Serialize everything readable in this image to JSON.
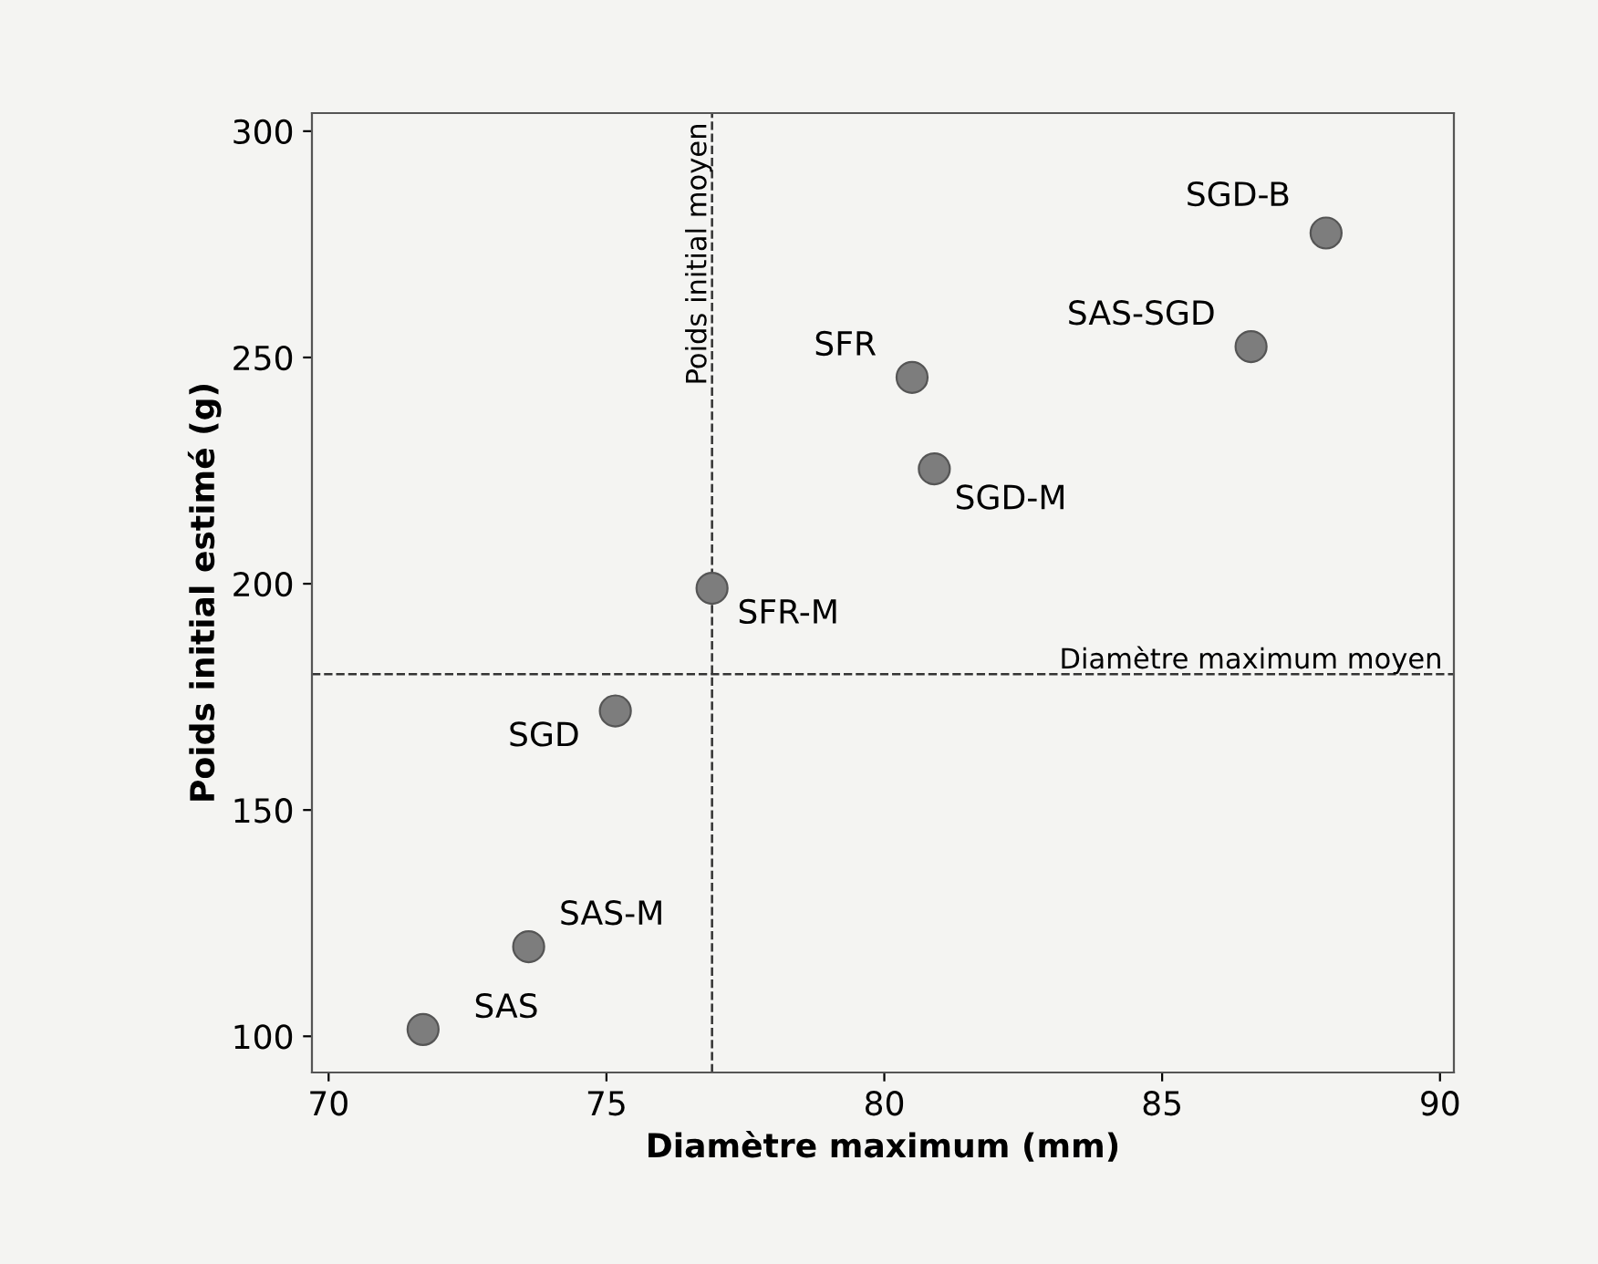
{
  "chart_data": {
    "type": "scatter",
    "xlabel": "Diamètre maximum (mm)",
    "ylabel": "Poids initial estimé (g)",
    "series": [
      {
        "color": "#7d7d7d",
        "x": [
          71.7,
          73.6,
          75.16,
          76.9,
          80.5,
          80.9,
          86.6,
          87.95
        ],
        "values": [
          101.5,
          119.8,
          171.9,
          199,
          245.6,
          225.4,
          252.4,
          277.5
        ],
        "value_labels": [
          "SAS",
          "SAS-M",
          "SGD",
          "SFR-M",
          "SFR",
          "SGD-M",
          "SAS-SGD",
          "SGD-B"
        ]
      }
    ],
    "marker": "circle",
    "xlim": [
      69.7,
      90.25
    ],
    "xticks": [
      70,
      75,
      80,
      85,
      90
    ],
    "ylim": [
      92,
      304
    ],
    "yticks": [
      100,
      150,
      200,
      250,
      300
    ],
    "ref_lines": [
      {
        "axis": "x",
        "value": 76.9,
        "label": "Poids initial moyen",
        "color": "#333333",
        "line_style": "dashed"
      },
      {
        "axis": "y",
        "value": 180,
        "label": "Diamètre maximum moyen",
        "color": "#333333",
        "line_style": "dashed"
      }
    ],
    "grid": false,
    "legend": false
  }
}
